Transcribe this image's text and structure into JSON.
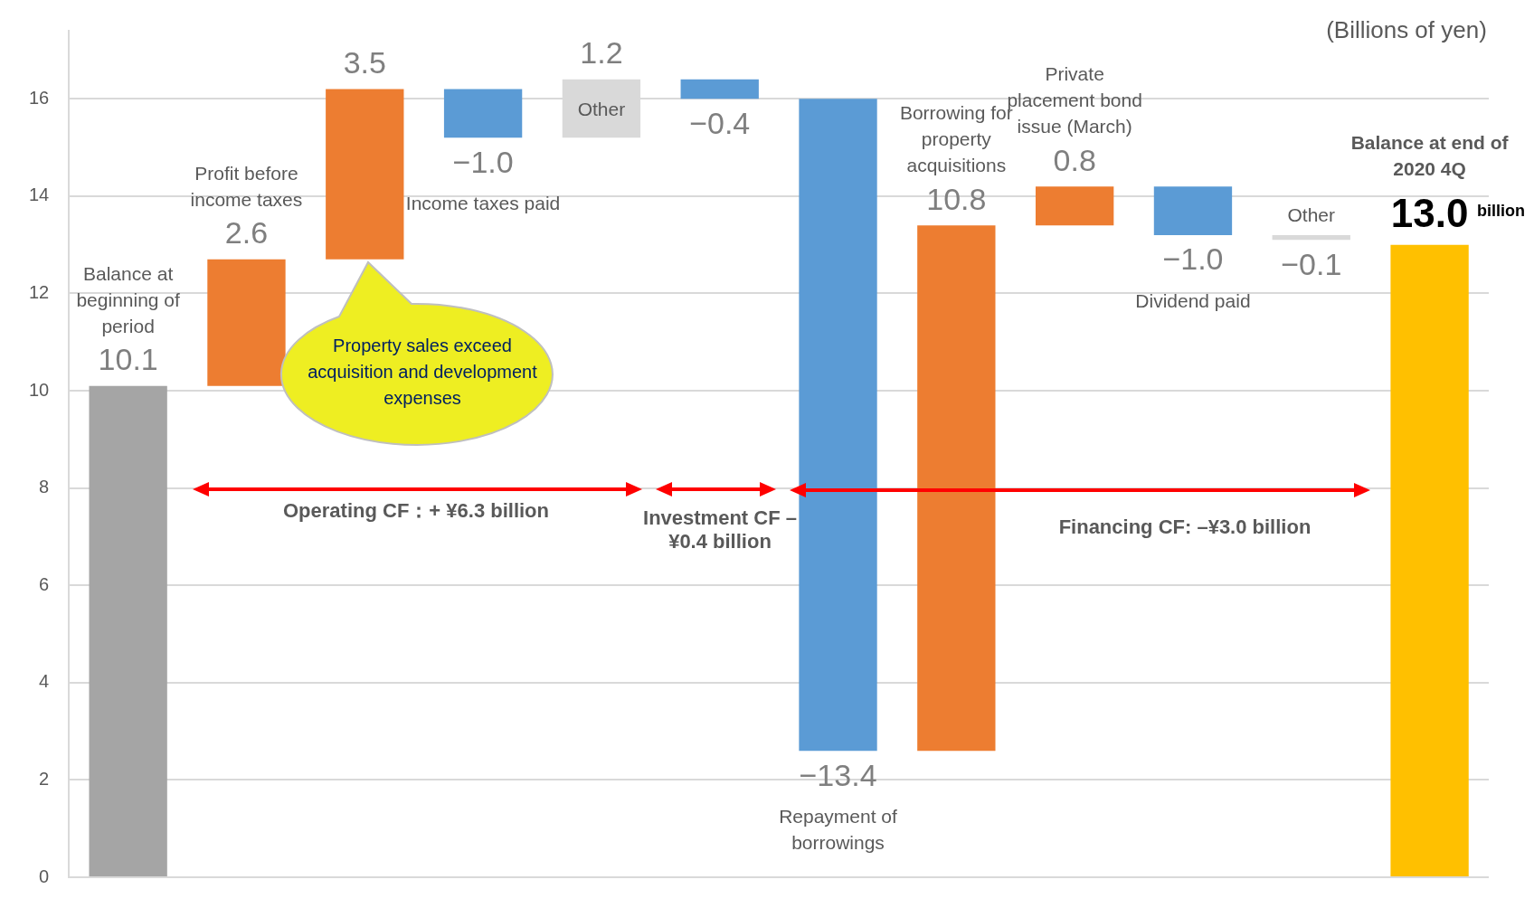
{
  "chart_data": {
    "type": "bar",
    "categories": [
      "Balance at beginning of period",
      "Profit before income taxes",
      null,
      "Income taxes paid",
      "Other",
      null,
      "Repayment of borrowings",
      "Borrowing for property acquisitions",
      "Private placement bond issue (March)",
      "Dividend paid",
      "Other",
      "Balance at end of 2020 4Q"
    ],
    "values": [
      10.1,
      2.6,
      3.5,
      -1.0,
      1.2,
      -0.4,
      -13.4,
      10.8,
      0.8,
      -1.0,
      -0.1,
      13.0
    ],
    "base": [
      0,
      10.1,
      12.7,
      16.2,
      15.2,
      16.4,
      16.0,
      2.6,
      13.4,
      14.2,
      13.2,
      0
    ],
    "colors": [
      "#a5a5a5",
      "#ed7d31",
      "#ed7d31",
      "#5b9bd5",
      "#d9d9d9",
      "#5b9bd5",
      "#5b9bd5",
      "#ed7d31",
      "#ed7d31",
      "#5b9bd5",
      "#d9d9d9",
      "#ffc000"
    ],
    "value_labels": [
      "10.1",
      "2.6",
      "3.5",
      "−1.0",
      "1.2",
      "−0.4",
      "−13.4",
      "10.8",
      "0.8",
      "−1.0",
      "−0.1",
      "13.0"
    ],
    "ylim": [
      0,
      17.4
    ],
    "yticks": [
      0,
      2,
      4,
      6,
      8,
      10,
      12,
      14,
      16
    ],
    "grid": "y",
    "legend": false,
    "tick_labels": "y",
    "annotations": [
      "(Billions of yen)",
      "Property sales exceed acquisition and development expenses",
      "Operating CF：+ ¥6.3 billion",
      "Investment CF –¥0.4 billion",
      "Financing CF: –¥3.0 billion",
      "billion"
    ]
  }
}
